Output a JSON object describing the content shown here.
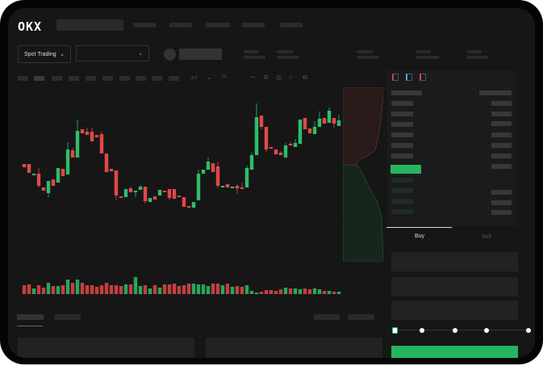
{
  "header": {
    "logo": "OKX"
  },
  "controls": {
    "market_type": "Spot Trading"
  },
  "order_form": {
    "tabs": [
      {
        "label": "Buy",
        "active": true
      },
      {
        "label": "Sell",
        "active": false
      }
    ],
    "leverage_slider_value": 0,
    "submit_color": "#25b55e"
  },
  "colors": {
    "up": "#2ebd6b",
    "down": "#e04848",
    "background": "#161616"
  },
  "chart_data": {
    "type": "candlestick",
    "title": "",
    "xlabel": "",
    "ylabel": "",
    "grid": true,
    "candles": [
      [
        97,
        97,
        93,
        93
      ],
      [
        97,
        97,
        86,
        86
      ],
      [
        84,
        85,
        84,
        85
      ],
      [
        85,
        92,
        68,
        70
      ],
      [
        68,
        68,
        64,
        64
      ],
      [
        61,
        76,
        56,
        76
      ],
      [
        78,
        78,
        70,
        70
      ],
      [
        74,
        92,
        74,
        92
      ],
      [
        91,
        91,
        82,
        82
      ],
      [
        84,
        124,
        84,
        115
      ],
      [
        114,
        117,
        105,
        105
      ],
      [
        105,
        152,
        105,
        138
      ],
      [
        140,
        140,
        135,
        135
      ],
      [
        137,
        142,
        133,
        133
      ],
      [
        137,
        142,
        125,
        125
      ],
      [
        133,
        133,
        130,
        130
      ],
      [
        134,
        137,
        110,
        110
      ],
      [
        110,
        110,
        87,
        87
      ],
      [
        91,
        91,
        88,
        88
      ],
      [
        89,
        89,
        52,
        58
      ],
      [
        57,
        57,
        55,
        55
      ],
      [
        56,
        66,
        56,
        66
      ],
      [
        67,
        69,
        62,
        62
      ],
      [
        63,
        64,
        56,
        64
      ],
      [
        65,
        71,
        65,
        69
      ],
      [
        69,
        69,
        48,
        51
      ],
      [
        50,
        55,
        50,
        55
      ],
      [
        57,
        57,
        53,
        53
      ],
      [
        58,
        65,
        58,
        65
      ],
      [
        64,
        64,
        63,
        63
      ],
      [
        66,
        66,
        52,
        55
      ],
      [
        66,
        66,
        54,
        54
      ],
      [
        58,
        58,
        57,
        57
      ],
      [
        56,
        56,
        44,
        44
      ],
      [
        45,
        45,
        43,
        43
      ],
      [
        43,
        50,
        43,
        50
      ],
      [
        52,
        90,
        52,
        85
      ],
      [
        85,
        90,
        85,
        90
      ],
      [
        90,
        105,
        90,
        100
      ],
      [
        98,
        98,
        87,
        87
      ],
      [
        94,
        100,
        67,
        70
      ],
      [
        68,
        70,
        68,
        70
      ],
      [
        72,
        72,
        68,
        68
      ],
      [
        67,
        69,
        67,
        69
      ],
      [
        70,
        72,
        60,
        67
      ],
      [
        68,
        74,
        66,
        66
      ],
      [
        68,
        95,
        68,
        92
      ],
      [
        90,
        111,
        90,
        108
      ],
      [
        108,
        172,
        108,
        155
      ],
      [
        157,
        157,
        140,
        143
      ],
      [
        143,
        143,
        112,
        115
      ],
      [
        118,
        118,
        116,
        116
      ],
      [
        115,
        115,
        109,
        109
      ],
      [
        111,
        113,
        108,
        108
      ],
      [
        105,
        123,
        105,
        120
      ],
      [
        122,
        125,
        120,
        120
      ],
      [
        118,
        128,
        118,
        123
      ],
      [
        122,
        152,
        122,
        152
      ],
      [
        154,
        154,
        140,
        140
      ],
      [
        141,
        141,
        135,
        135
      ],
      [
        134,
        150,
        134,
        143
      ],
      [
        143,
        162,
        143,
        153
      ],
      [
        154,
        154,
        147,
        147
      ],
      [
        148,
        167,
        148,
        163
      ],
      [
        154,
        154,
        142,
        147
      ],
      [
        144,
        158,
        144,
        151
      ]
    ],
    "volume": [
      11,
      12,
      7,
      11,
      8,
      14,
      10,
      10,
      11,
      18,
      14,
      18,
      14,
      11,
      11,
      9,
      11,
      14,
      11,
      11,
      10,
      12,
      12,
      21,
      10,
      11,
      7,
      11,
      8,
      12,
      12,
      13,
      10,
      11,
      13,
      13,
      12,
      12,
      10,
      13,
      13,
      11,
      13,
      9,
      10,
      9,
      11,
      4,
      2,
      3,
      5,
      5,
      4,
      6,
      8,
      7,
      7,
      6,
      7,
      6,
      7,
      6,
      4,
      4,
      3,
      3
    ]
  }
}
